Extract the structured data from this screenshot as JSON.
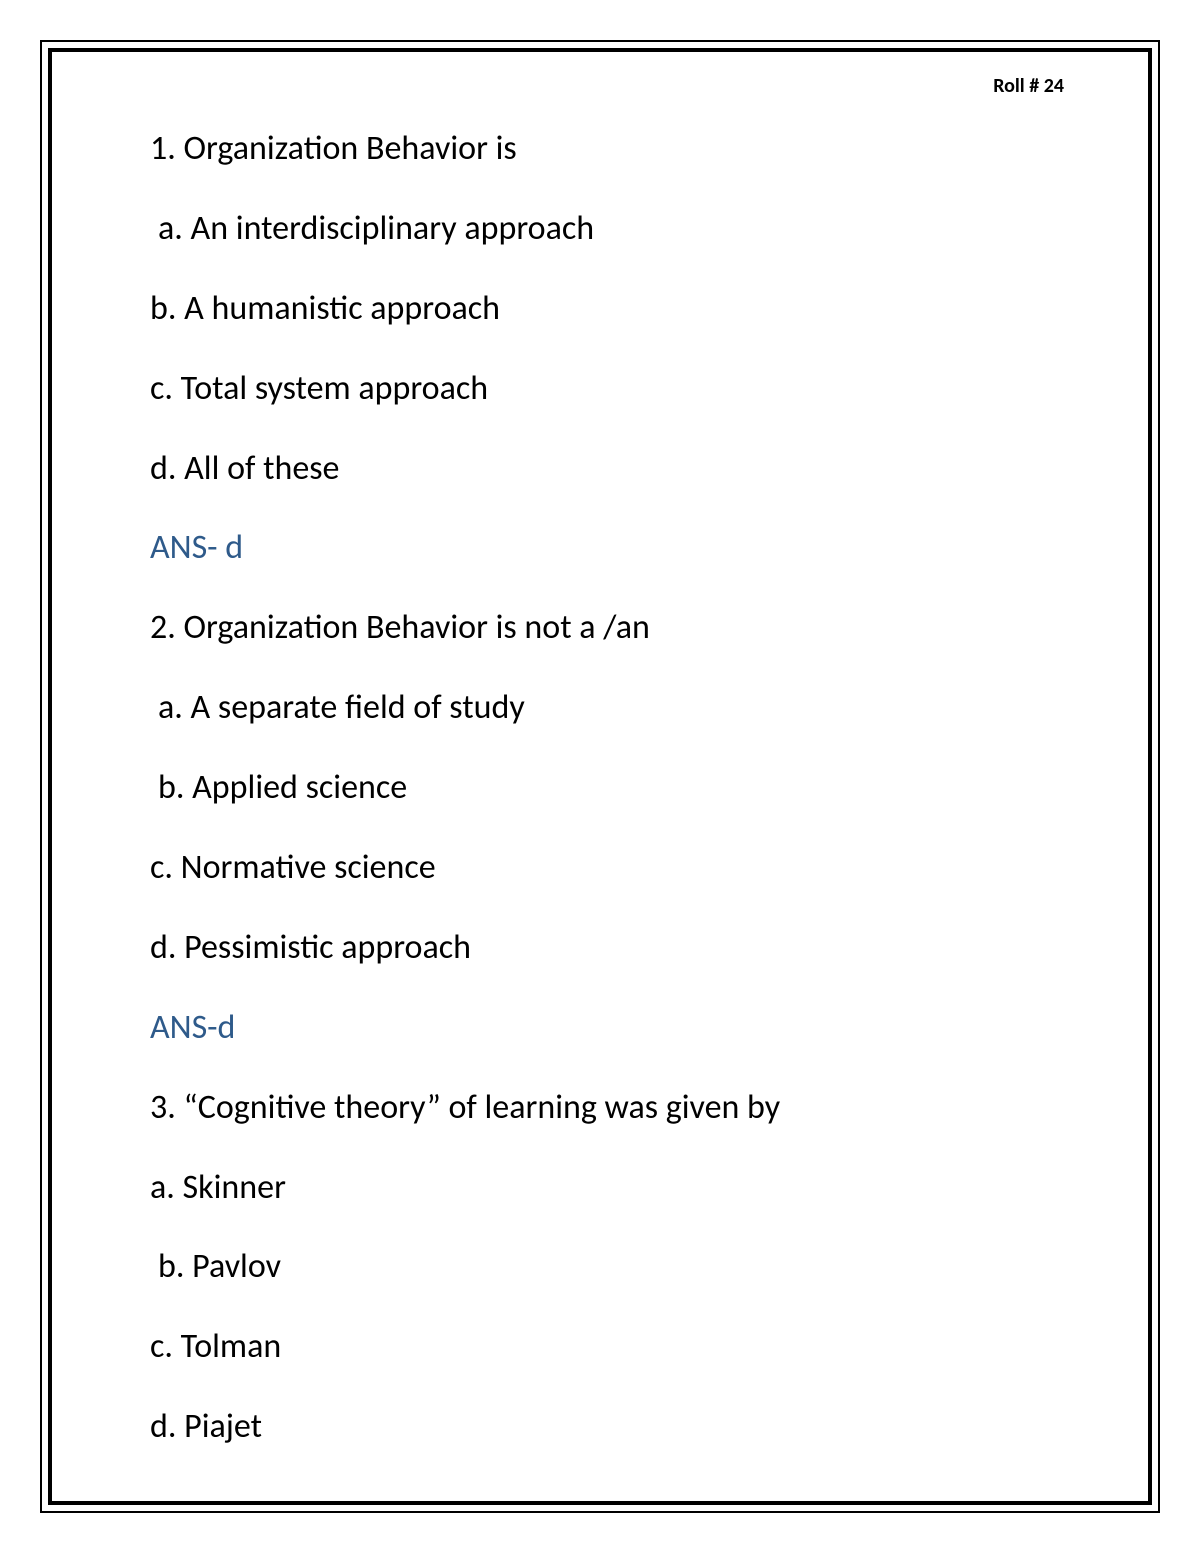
{
  "header": {
    "roll_label": "Roll # 24"
  },
  "text_color": "#000000",
  "answer_color": "#2e5a8a",
  "background_color": "#ffffff",
  "border_color": "#000000",
  "body_fontsize": 34,
  "header_fontsize": 20,
  "questions": [
    {
      "prompt": "1. Organization Behavior is",
      "options": [
        {
          "text": " a. An interdisciplinary approach",
          "indent": true
        },
        {
          "text": "b. A humanistic approach",
          "indent": false
        },
        {
          "text": "c. Total system approach",
          "indent": false
        },
        {
          "text": "d. All of these",
          "indent": false
        }
      ],
      "answer": "ANS- d"
    },
    {
      "prompt": "2. Organization Behavior is not a /an",
      "options": [
        {
          "text": " a. A separate field of study",
          "indent": true
        },
        {
          "text": " b. Applied science",
          "indent": true
        },
        {
          "text": "c. Normative science",
          "indent": false
        },
        {
          "text": "d. Pessimistic approach",
          "indent": false
        }
      ],
      "answer": "ANS-d"
    },
    {
      "prompt": "3. “Cognitive theory” of learning was given by",
      "options": [
        {
          "text": "a. Skinner",
          "indent": false
        },
        {
          "text": " b. Pavlov",
          "indent": true
        },
        {
          "text": "c. Tolman",
          "indent": false
        },
        {
          "text": "d. Piajet",
          "indent": false
        }
      ],
      "answer": null
    }
  ]
}
